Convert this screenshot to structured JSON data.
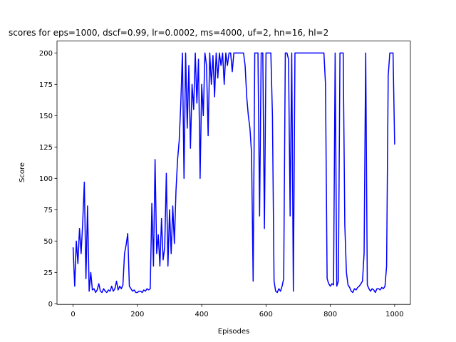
{
  "chart_data": {
    "type": "line",
    "title": "scores for eps=1000, dscf=0.99, lr=0.0002, ms=4000, uf=2, hn=16, hl=2",
    "x_label": "Episodes",
    "y_label": "Score",
    "xlim": [
      -50,
      1049
    ],
    "ylim": [
      -0.5,
      209.5
    ],
    "xticks": [
      0,
      200,
      400,
      600,
      800,
      1000
    ],
    "yticks": [
      0,
      25,
      50,
      75,
      100,
      125,
      150,
      175,
      200
    ],
    "grid": false,
    "series": [
      {
        "color": "#0000ff",
        "x": [
          0,
          5,
          10,
          15,
          20,
          25,
          30,
          35,
          40,
          45,
          50,
          55,
          60,
          65,
          70,
          75,
          80,
          85,
          90,
          95,
          100,
          105,
          110,
          115,
          120,
          125,
          130,
          135,
          140,
          145,
          150,
          155,
          160,
          165,
          170,
          175,
          180,
          185,
          190,
          195,
          200,
          205,
          210,
          215,
          220,
          225,
          230,
          235,
          240,
          245,
          250,
          255,
          260,
          265,
          270,
          275,
          280,
          285,
          290,
          295,
          300,
          305,
          310,
          315,
          320,
          325,
          330,
          335,
          340,
          345,
          350,
          355,
          360,
          365,
          370,
          375,
          380,
          385,
          390,
          395,
          400,
          405,
          410,
          415,
          420,
          425,
          430,
          435,
          440,
          445,
          450,
          455,
          460,
          465,
          470,
          475,
          480,
          485,
          490,
          495,
          500,
          505,
          510,
          515,
          520,
          525,
          530,
          535,
          540,
          545,
          550,
          555,
          560,
          565,
          570,
          575,
          580,
          585,
          590,
          595,
          600,
          605,
          610,
          615,
          620,
          625,
          630,
          635,
          640,
          645,
          650,
          655,
          660,
          665,
          670,
          675,
          680,
          685,
          690,
          695,
          700,
          705,
          710,
          715,
          720,
          725,
          730,
          735,
          740,
          745,
          750,
          755,
          760,
          765,
          770,
          775,
          780,
          785,
          790,
          795,
          800,
          805,
          810,
          815,
          820,
          825,
          830,
          835,
          840,
          845,
          850,
          855,
          860,
          865,
          870,
          875,
          880,
          885,
          890,
          895,
          900,
          905,
          910,
          915,
          920,
          925,
          930,
          935,
          940,
          945,
          950,
          955,
          960,
          965,
          970,
          975,
          980,
          985,
          990,
          995,
          1000
        ],
        "values": [
          45,
          14,
          50,
          32,
          60,
          40,
          65,
          97,
          20,
          78,
          10,
          25,
          11,
          12,
          9,
          11,
          16,
          10,
          9,
          12,
          10,
          9,
          11,
          10,
          14,
          10,
          12,
          18,
          11,
          14,
          12,
          15,
          40,
          47,
          56,
          14,
          12,
          10,
          11,
          9,
          9,
          10,
          10,
          9,
          11,
          10,
          12,
          11,
          12,
          80,
          30,
          115,
          40,
          55,
          30,
          68,
          35,
          45,
          104,
          30,
          75,
          40,
          78,
          48,
          90,
          115,
          130,
          160,
          200,
          100,
          200,
          140,
          190,
          124,
          175,
          155,
          200,
          160,
          195,
          100,
          175,
          150,
          200,
          190,
          134,
          200,
          175,
          198,
          165,
          200,
          180,
          200,
          190,
          200,
          175,
          200,
          190,
          200,
          200,
          185,
          200,
          200,
          200,
          200,
          200,
          200,
          200,
          190,
          165,
          150,
          140,
          120,
          18,
          200,
          200,
          200,
          70,
          200,
          200,
          60,
          200,
          200,
          200,
          200,
          150,
          18,
          10,
          9,
          12,
          10,
          14,
          20,
          200,
          200,
          195,
          70,
          200,
          10,
          200,
          200,
          200,
          200,
          200,
          200,
          200,
          200,
          200,
          200,
          200,
          200,
          200,
          200,
          200,
          200,
          200,
          200,
          200,
          175,
          20,
          16,
          14,
          16,
          15,
          200,
          14,
          18,
          200,
          200,
          200,
          63,
          25,
          15,
          13,
          10,
          9,
          12,
          11,
          13,
          14,
          16,
          18,
          40,
          200,
          15,
          12,
          10,
          12,
          11,
          9,
          12,
          12,
          11,
          13,
          12,
          14,
          30,
          182,
          200,
          200,
          200,
          127
        ]
      }
    ]
  }
}
